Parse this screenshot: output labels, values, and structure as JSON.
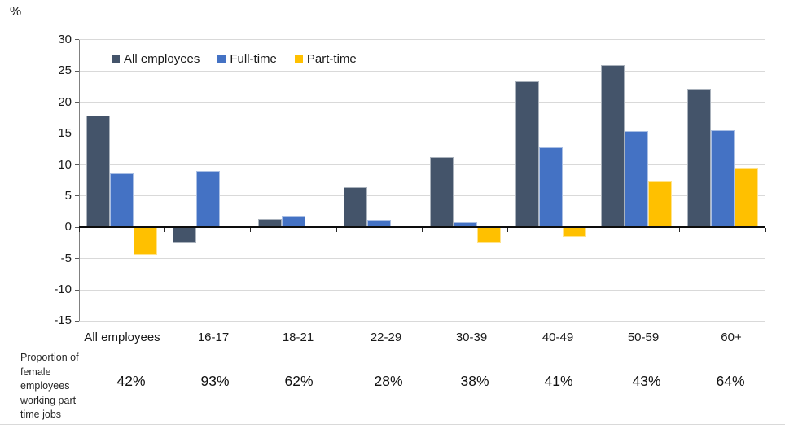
{
  "unit_label": "%",
  "chart_data": {
    "type": "bar",
    "title": "",
    "unit": "%",
    "categories": [
      "All employees",
      "16-17",
      "18-21",
      "22-29",
      "30-39",
      "40-49",
      "50-59",
      "60+"
    ],
    "series": [
      {
        "name": "All employees",
        "color": "#44546A",
        "values": [
          17.9,
          -2.4,
          1.4,
          6.4,
          11.3,
          23.4,
          26.0,
          22.2
        ]
      },
      {
        "name": "Full-time",
        "color": "#4472C4",
        "values": [
          8.6,
          9.0,
          1.9,
          1.2,
          0.8,
          12.8,
          15.4,
          15.6
        ]
      },
      {
        "name": "Part-time",
        "color": "#FFC000",
        "values": [
          -4.4,
          0,
          0.2,
          0,
          -2.5,
          -1.5,
          7.5,
          9.6
        ]
      }
    ],
    "ylim": [
      -15,
      30
    ],
    "ytick_step": 5,
    "yticks": [
      30,
      25,
      20,
      15,
      10,
      5,
      0,
      -5,
      -10,
      -15
    ],
    "grid": "horizontal",
    "gridline_color": "#D9D9D9",
    "legend_position": "top-inside"
  },
  "bottom_row": {
    "label": "Proportion of female employees working part-time jobs",
    "values": [
      "42%",
      "93%",
      "62%",
      "28%",
      "38%",
      "41%",
      "43%",
      "64%"
    ]
  }
}
